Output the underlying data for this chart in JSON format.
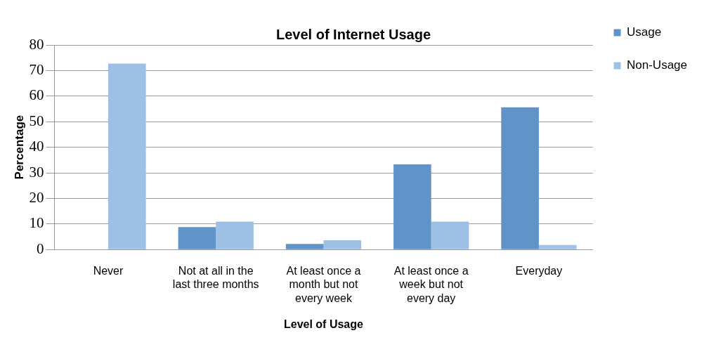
{
  "chart_data": {
    "type": "bar",
    "title": "Level of Internet Usage",
    "xlabel": "Level of Usage",
    "ylabel": "Percentage",
    "categories": [
      "Never",
      "Not at all in the last three months",
      "At least once a month but not every week",
      "At least once a week but not every day",
      "Everyday"
    ],
    "series": [
      {
        "name": "Usage",
        "color": "#6094c9",
        "values": [
          0,
          8.8,
          2.2,
          33.3,
          55.6
        ]
      },
      {
        "name": "Non-Usage",
        "color": "#9ec0e5",
        "values": [
          72.7,
          10.9,
          3.6,
          10.9,
          1.8
        ]
      }
    ],
    "ylim": [
      0,
      80
    ],
    "yticks": [
      0,
      10,
      20,
      30,
      40,
      50,
      60,
      70,
      80
    ],
    "grid": "y",
    "legend": "top right"
  }
}
